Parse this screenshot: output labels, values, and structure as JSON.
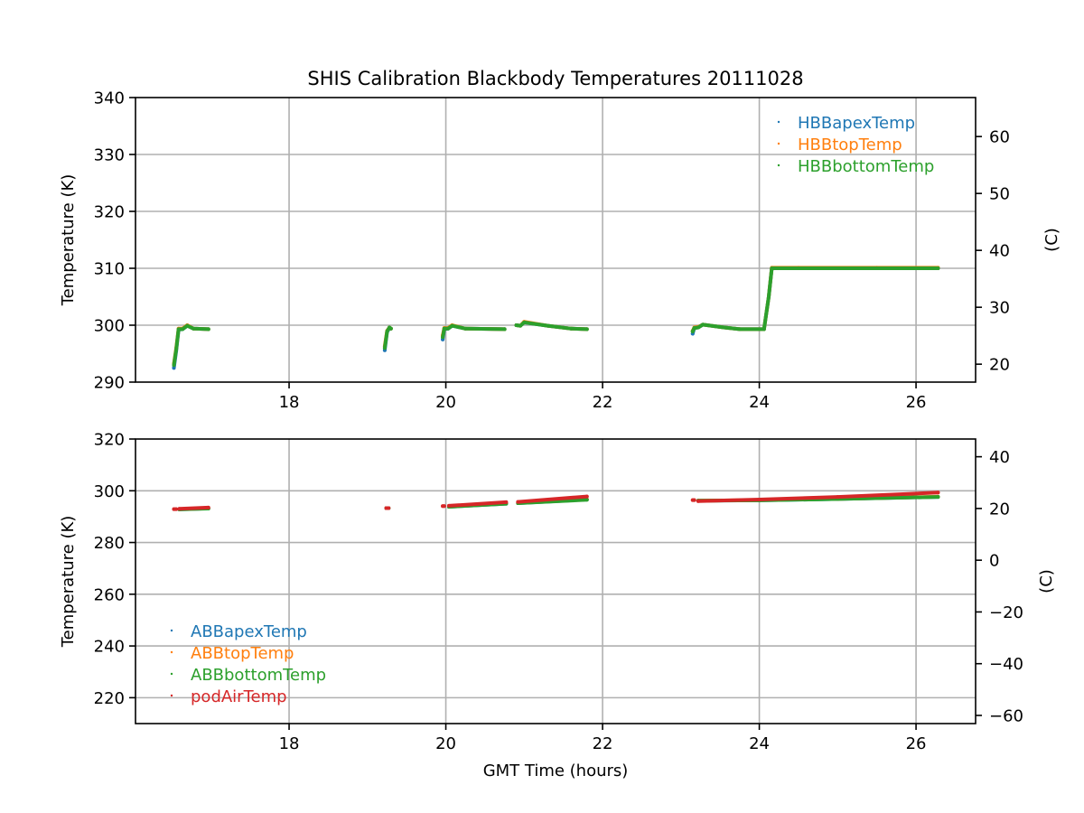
{
  "chart_data": [
    {
      "type": "scatter",
      "title": "SHIS Calibration Blackbody Temperatures 20111028",
      "xlabel": "",
      "ylabel": "Temperature (K)",
      "ylabel_right": "(C)",
      "xlim": [
        16.04,
        26.76
      ],
      "ylim": [
        290,
        340
      ],
      "ylim_right": [
        16.85,
        66.85
      ],
      "xticks": [
        18,
        20,
        22,
        24,
        26
      ],
      "xtick_labels": [
        "18",
        "20",
        "22",
        "24",
        "26"
      ],
      "yticks": [
        290,
        300,
        310,
        320,
        330,
        340
      ],
      "ytick_labels": [
        "290",
        "300",
        "310",
        "320",
        "330",
        "340"
      ],
      "yticks_right": [
        20,
        30,
        40,
        50,
        60
      ],
      "ytick_labels_right": [
        "20",
        "30",
        "40",
        "50",
        "60"
      ],
      "grid": true,
      "legend_position": "upper-right",
      "series": [
        {
          "name": "HBBapexTemp",
          "color": "#1f77b4",
          "segments": [
            [
              [
                16.53,
                292.5
              ],
              [
                16.56,
                295.5
              ],
              [
                16.59,
                299.2
              ],
              [
                16.64,
                299.3
              ],
              [
                16.7,
                299.9
              ],
              [
                16.78,
                299.4
              ],
              [
                16.97,
                299.3
              ]
            ],
            [
              [
                19.22,
                295.6
              ],
              [
                19.25,
                298.8
              ],
              [
                19.28,
                299.5
              ],
              [
                19.3,
                299.4
              ]
            ],
            [
              [
                19.96,
                297.5
              ],
              [
                19.98,
                299.3
              ],
              [
                20.03,
                299.4
              ],
              [
                20.08,
                299.9
              ],
              [
                20.25,
                299.4
              ],
              [
                20.75,
                299.3
              ]
            ],
            [
              [
                20.9,
                300.0
              ],
              [
                20.95,
                299.9
              ],
              [
                21.0,
                300.5
              ],
              [
                21.3,
                299.9
              ],
              [
                21.6,
                299.4
              ],
              [
                21.8,
                299.3
              ]
            ],
            [
              [
                23.15,
                298.5
              ],
              [
                23.17,
                299.5
              ],
              [
                23.22,
                299.6
              ],
              [
                23.28,
                300.1
              ],
              [
                23.55,
                299.6
              ],
              [
                23.75,
                299.3
              ],
              [
                24.06,
                299.3
              ],
              [
                24.12,
                305.0
              ],
              [
                24.16,
                310.0
              ],
              [
                24.5,
                310.0
              ],
              [
                25.5,
                310.0
              ],
              [
                26.28,
                310.0
              ]
            ]
          ]
        },
        {
          "name": "HBBtopTemp",
          "color": "#ff7f0e",
          "segments": [
            [
              [
                16.53,
                293.2
              ],
              [
                16.56,
                296.0
              ],
              [
                16.59,
                299.4
              ],
              [
                16.64,
                299.4
              ],
              [
                16.7,
                300.0
              ],
              [
                16.78,
                299.4
              ],
              [
                16.97,
                299.3
              ]
            ],
            [
              [
                19.22,
                296.3
              ],
              [
                19.25,
                299.0
              ],
              [
                19.28,
                299.6
              ],
              [
                19.3,
                299.4
              ]
            ],
            [
              [
                19.96,
                298.2
              ],
              [
                19.98,
                299.5
              ],
              [
                20.03,
                299.5
              ],
              [
                20.08,
                300.0
              ],
              [
                20.25,
                299.4
              ],
              [
                20.75,
                299.3
              ]
            ],
            [
              [
                20.9,
                300.0
              ],
              [
                20.95,
                299.9
              ],
              [
                21.0,
                300.6
              ],
              [
                21.3,
                299.9
              ],
              [
                21.6,
                299.4
              ],
              [
                21.8,
                299.3
              ]
            ],
            [
              [
                23.15,
                299.0
              ],
              [
                23.17,
                299.6
              ],
              [
                23.22,
                299.7
              ],
              [
                23.28,
                300.1
              ],
              [
                23.55,
                299.6
              ],
              [
                23.75,
                299.3
              ],
              [
                24.06,
                299.3
              ],
              [
                24.12,
                305.0
              ],
              [
                24.16,
                310.1
              ],
              [
                24.5,
                310.1
              ],
              [
                25.5,
                310.1
              ],
              [
                26.28,
                310.1
              ]
            ]
          ]
        },
        {
          "name": "HBBbottomTemp",
          "color": "#2ca02c",
          "segments": [
            [
              [
                16.53,
                293.0
              ],
              [
                16.56,
                295.8
              ],
              [
                16.59,
                299.3
              ],
              [
                16.64,
                299.3
              ],
              [
                16.7,
                299.9
              ],
              [
                16.78,
                299.4
              ],
              [
                16.97,
                299.3
              ]
            ],
            [
              [
                19.22,
                296.0
              ],
              [
                19.25,
                298.9
              ],
              [
                19.28,
                299.6
              ],
              [
                19.3,
                299.4
              ]
            ],
            [
              [
                19.96,
                297.9
              ],
              [
                19.98,
                299.4
              ],
              [
                20.03,
                299.4
              ],
              [
                20.08,
                299.9
              ],
              [
                20.25,
                299.4
              ],
              [
                20.75,
                299.3
              ]
            ],
            [
              [
                20.9,
                300.0
              ],
              [
                20.95,
                299.9
              ],
              [
                21.0,
                300.5
              ],
              [
                21.3,
                299.9
              ],
              [
                21.6,
                299.4
              ],
              [
                21.8,
                299.3
              ]
            ],
            [
              [
                23.15,
                298.9
              ],
              [
                23.17,
                299.5
              ],
              [
                23.22,
                299.6
              ],
              [
                23.28,
                300.1
              ],
              [
                23.55,
                299.6
              ],
              [
                23.75,
                299.3
              ],
              [
                24.06,
                299.3
              ],
              [
                24.12,
                305.0
              ],
              [
                24.16,
                310.0
              ],
              [
                24.5,
                310.0
              ],
              [
                25.5,
                310.0
              ],
              [
                26.28,
                310.0
              ]
            ]
          ]
        }
      ]
    },
    {
      "type": "scatter",
      "title": "",
      "xlabel": "GMT Time (hours)",
      "ylabel": "Temperature (K)",
      "ylabel_right": "(C)",
      "xlim": [
        16.04,
        26.76
      ],
      "ylim": [
        210,
        320
      ],
      "ylim_right": [
        -63.15,
        46.85
      ],
      "xticks": [
        18,
        20,
        22,
        24,
        26
      ],
      "xtick_labels": [
        "18",
        "20",
        "22",
        "24",
        "26"
      ],
      "yticks": [
        220,
        240,
        260,
        280,
        300,
        320
      ],
      "ytick_labels": [
        "220",
        "240",
        "260",
        "280",
        "300",
        "320"
      ],
      "yticks_right": [
        -60,
        -40,
        -20,
        0,
        20,
        40
      ],
      "ytick_labels_right": [
        "−60",
        "−40",
        "−20",
        "0",
        "20",
        "40"
      ],
      "grid": true,
      "legend_position": "lower-left",
      "series": [
        {
          "name": "ABBapexTemp",
          "color": "#1f77b4",
          "segments": [
            [
              [
                16.6,
                292.8
              ],
              [
                16.97,
                293.2
              ]
            ],
            [
              [
                19.24,
                293.3
              ],
              [
                19.27,
                293.3
              ]
            ],
            [
              [
                20.04,
                293.8
              ],
              [
                20.77,
                295.0
              ]
            ],
            [
              [
                20.92,
                295.2
              ],
              [
                21.8,
                296.6
              ]
            ],
            [
              [
                23.22,
                296.2
              ],
              [
                24.0,
                296.3
              ],
              [
                25.0,
                296.8
              ],
              [
                26.28,
                297.6
              ]
            ]
          ]
        },
        {
          "name": "ABBtopTemp",
          "color": "#ff7f0e",
          "segments": [
            [
              [
                16.6,
                292.9
              ],
              [
                16.97,
                293.3
              ]
            ],
            [
              [
                19.24,
                293.3
              ],
              [
                19.27,
                293.3
              ]
            ],
            [
              [
                20.04,
                293.9
              ],
              [
                20.77,
                295.1
              ]
            ],
            [
              [
                20.92,
                295.3
              ],
              [
                21.8,
                296.7
              ]
            ],
            [
              [
                23.22,
                296.2
              ],
              [
                24.0,
                296.4
              ],
              [
                25.0,
                296.9
              ],
              [
                26.28,
                297.7
              ]
            ]
          ]
        },
        {
          "name": "ABBbottomTemp",
          "color": "#2ca02c",
          "segments": [
            [
              [
                16.6,
                292.8
              ],
              [
                16.97,
                293.1
              ]
            ],
            [
              [
                19.24,
                293.3
              ],
              [
                19.27,
                293.3
              ]
            ],
            [
              [
                20.04,
                293.8
              ],
              [
                20.77,
                295.0
              ]
            ],
            [
              [
                20.92,
                295.2
              ],
              [
                21.8,
                296.5
              ]
            ],
            [
              [
                23.22,
                296.2
              ],
              [
                24.0,
                296.3
              ],
              [
                25.0,
                296.8
              ],
              [
                26.28,
                297.6
              ]
            ]
          ]
        },
        {
          "name": "podAirTemp",
          "color": "#d62728",
          "segments": [
            [
              [
                16.53,
                292.9
              ],
              [
                16.56,
                292.9
              ]
            ],
            [
              [
                16.6,
                293.0
              ],
              [
                16.97,
                293.5
              ]
            ],
            [
              [
                19.24,
                293.3
              ],
              [
                19.27,
                293.3
              ]
            ],
            [
              [
                19.96,
                294.1
              ],
              [
                19.98,
                294.1
              ]
            ],
            [
              [
                20.04,
                294.2
              ],
              [
                20.77,
                295.6
              ]
            ],
            [
              [
                20.92,
                295.7
              ],
              [
                21.8,
                297.8
              ]
            ],
            [
              [
                23.15,
                296.4
              ],
              [
                23.17,
                296.4
              ]
            ],
            [
              [
                23.22,
                296.0
              ],
              [
                24.0,
                296.6
              ],
              [
                25.0,
                297.6
              ],
              [
                26.28,
                299.3
              ]
            ]
          ]
        }
      ]
    }
  ]
}
